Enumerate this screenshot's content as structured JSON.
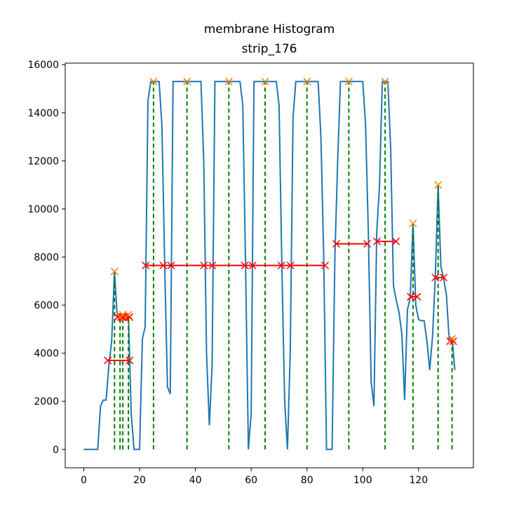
{
  "chart_data": {
    "type": "line",
    "title": "membrane Histogram",
    "subtitle": "strip_176",
    "x": [
      0,
      1,
      2,
      3,
      4,
      5,
      6,
      7,
      8,
      9,
      10,
      11,
      12,
      13,
      14,
      15,
      16,
      17,
      18,
      19,
      20,
      21,
      22,
      23,
      24,
      25,
      26,
      27,
      28,
      29,
      30,
      31,
      32,
      33,
      34,
      35,
      36,
      37,
      38,
      39,
      40,
      41,
      42,
      43,
      44,
      45,
      46,
      47,
      48,
      49,
      50,
      51,
      52,
      53,
      54,
      55,
      56,
      57,
      58,
      59,
      60,
      61,
      62,
      63,
      64,
      65,
      66,
      67,
      68,
      69,
      70,
      71,
      72,
      73,
      74,
      75,
      76,
      77,
      78,
      79,
      80,
      81,
      82,
      83,
      84,
      85,
      86,
      87,
      88,
      89,
      90,
      91,
      92,
      93,
      94,
      95,
      96,
      97,
      98,
      99,
      100,
      101,
      102,
      103,
      104,
      105,
      106,
      107,
      108,
      109,
      110,
      111,
      112,
      113,
      114,
      115,
      116,
      117,
      118,
      119,
      120,
      121,
      122,
      123,
      124,
      125,
      126,
      127,
      128,
      129,
      130,
      131,
      132,
      133
    ],
    "series": [
      {
        "color": "#1f77b4",
        "values": [
          0,
          0,
          0,
          0,
          0,
          0,
          1800,
          2050,
          2050,
          3500,
          4500,
          7400,
          5500,
          5500,
          5600,
          5500,
          5600,
          1500,
          0,
          0,
          0,
          4600,
          5100,
          14500,
          15300,
          15300,
          15300,
          15300,
          13500,
          7700,
          2600,
          2300,
          15300,
          15300,
          15300,
          15300,
          15300,
          15300,
          15300,
          15300,
          15300,
          15300,
          15300,
          12000,
          4000,
          1000,
          3500,
          15300,
          15300,
          15300,
          15300,
          15300,
          15300,
          15300,
          15300,
          15300,
          15300,
          14300,
          7600,
          0,
          1500,
          15300,
          15300,
          15300,
          15300,
          15300,
          15300,
          15300,
          15300,
          15300,
          14300,
          7600,
          2000,
          0,
          4000,
          13800,
          15300,
          15300,
          15300,
          15300,
          15300,
          15300,
          15300,
          15300,
          15300,
          13000,
          8000,
          0,
          0,
          0,
          8000,
          12000,
          15300,
          15300,
          15300,
          15300,
          15300,
          15300,
          15300,
          15300,
          15300,
          13500,
          9000,
          2800,
          1800,
          9000,
          11000,
          15300,
          15300,
          15300,
          12500,
          6800,
          6200,
          5700,
          4800,
          2050,
          5800,
          6300,
          9400,
          6000,
          5400,
          5350,
          5350,
          4500,
          3300,
          4700,
          7200,
          11000,
          7600,
          7100,
          6400,
          4500,
          4600,
          3300
        ]
      }
    ],
    "peaks": {
      "x": [
        11,
        13,
        14,
        16,
        25,
        37,
        52,
        65,
        80,
        95,
        108,
        118,
        127,
        132
      ],
      "values": [
        7400,
        5500,
        5600,
        5600,
        15300,
        15300,
        15300,
        15300,
        15300,
        15300,
        15300,
        9400,
        11000,
        4600
      ],
      "color": "#ff7f0e",
      "line_color": "#008000"
    },
    "widths": {
      "heights": [
        3700,
        5500,
        5500,
        5500,
        7650,
        7650,
        7650,
        7650,
        7650,
        8550,
        8650,
        6350,
        7150,
        4500
      ],
      "left": [
        8.6,
        12.1,
        13.6,
        14.6,
        22.2,
        28.5,
        43.1,
        57.7,
        70.8,
        90.5,
        105.1,
        117.2,
        126,
        131.3
      ],
      "right": [
        16.4,
        13.9,
        15.0,
        16.4,
        31.3,
        46.1,
        60.5,
        74.1,
        86.5,
        101.6,
        111.9,
        119.5,
        129,
        132.4
      ],
      "color": "#ff0000"
    },
    "xlim": [
      -6.65,
      139.65
    ],
    "ylim": [
      -765,
      16065
    ],
    "xticks": [
      0,
      20,
      40,
      60,
      80,
      100,
      120
    ],
    "yticks": [
      0,
      2000,
      4000,
      6000,
      8000,
      10000,
      12000,
      14000,
      16000
    ]
  }
}
